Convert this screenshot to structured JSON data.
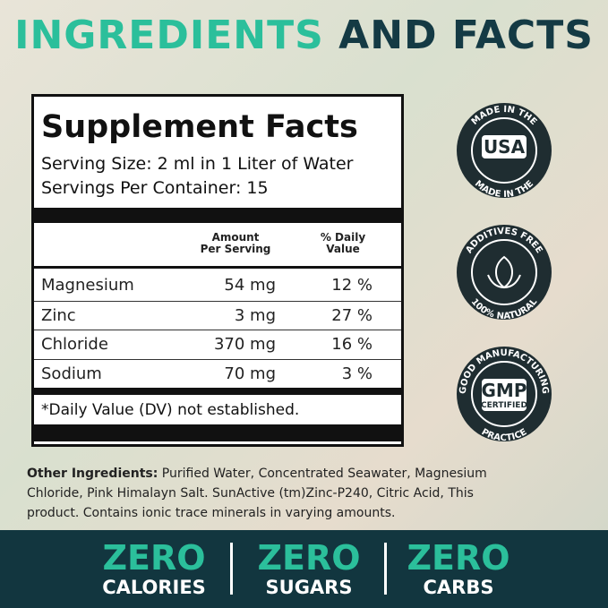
{
  "header": {
    "title_accent": "INGREDIENTS",
    "title_rest": "AND FACTS"
  },
  "facts": {
    "title": "Supplement Facts",
    "serving_size": "Serving Size: 2 ml in 1 Liter of Water",
    "servings": "Servings Per Container: 15",
    "columns": [
      [
        "Amount",
        "Per Serving"
      ],
      [
        "% Daily",
        "Value"
      ]
    ],
    "rows": [
      [
        "Magnesium",
        "54 mg",
        "12 %"
      ],
      [
        "Zinc",
        "3 mg",
        "27 %"
      ],
      [
        "Chloride",
        "370 mg",
        "16 %"
      ],
      [
        "Sodium",
        "70 mg",
        "3 %"
      ]
    ],
    "footnote": "*Daily Value (DV) not established."
  },
  "badges": [
    {
      "top": "MADE IN THE",
      "center": "USA",
      "bottom": "MADE IN THE"
    },
    {
      "top": "ADDITIVES FREE",
      "bottom": "100% NATURAL"
    },
    {
      "top": "GOOD MANUFACTURING",
      "center": "GMP",
      "sub": "CERTIFIED",
      "bottom": "PRACTICE"
    }
  ],
  "other": {
    "label": "Other Ingredients:",
    "text": "Purified Water, Concentrated Seawater, Magnesium Chloride, Pink Himalayn Salt. SunActive (tm)Zinc-P240, Citric Acid, This product. Contains ionic trace minerals in varying amounts."
  },
  "footer": [
    {
      "top": "ZERO",
      "bottom": "CALORIES"
    },
    {
      "top": "ZERO",
      "bottom": "SUGARS"
    },
    {
      "top": "ZERO",
      "bottom": "CARBS"
    }
  ]
}
